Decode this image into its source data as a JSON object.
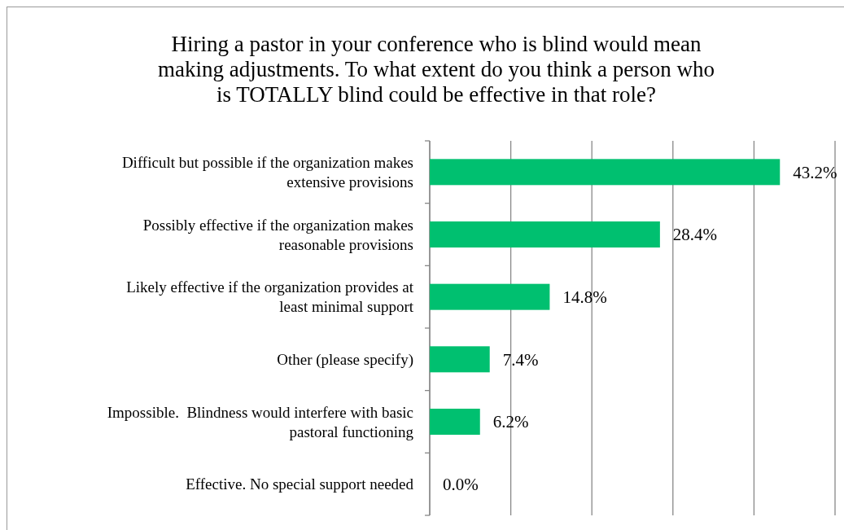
{
  "chart_data": {
    "type": "bar",
    "orientation": "horizontal",
    "title": "Hiring a pastor in your conference who is blind would mean making adjustments. To what extent do you think a person who is TOTALLY blind could be effective in that role?",
    "categories": [
      "Difficult but possible if the organization makes extensive provisions",
      "Possibly effective if the organization makes reasonable provisions",
      "Likely effective if the organization provides at least minimal support",
      "Other (please specify)",
      "Impossible.  Blindness would interfere with basic pastoral functioning",
      "Effective. No special support needed"
    ],
    "values": [
      43.2,
      28.4,
      14.8,
      7.4,
      6.2,
      0.0
    ],
    "value_labels": [
      "43.2%",
      "28.4%",
      "14.8%",
      "7.4%",
      "6.2%",
      "0.0%"
    ],
    "color": "#00c070",
    "xlim": [
      0,
      50
    ],
    "xticks": [
      {
        "value": 0,
        "label": null
      },
      {
        "value": 10,
        "label": null
      },
      {
        "value": 20,
        "label": null
      },
      {
        "value": 30,
        "label": null
      },
      {
        "value": 40,
        "label": null
      },
      {
        "value": 50,
        "label": null
      }
    ],
    "grid": "x",
    "tick_labels": "y"
  }
}
